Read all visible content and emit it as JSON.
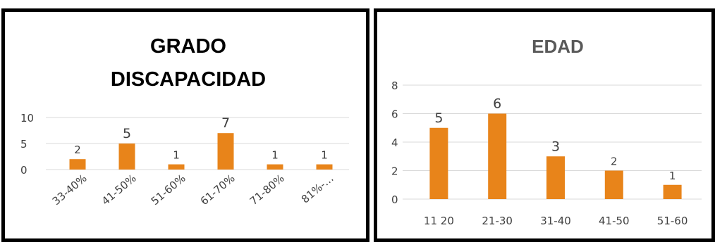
{
  "chart_data": [
    {
      "type": "bar",
      "title": "GRADO DISCAPACIDAD",
      "title_lines": [
        "GRADO",
        "DISCAPACIDAD"
      ],
      "categories": [
        "33-40%",
        "41-50%",
        "51-60%",
        "61-70%",
        "71-80%",
        "81%-…"
      ],
      "values": [
        2,
        5,
        1,
        7,
        1,
        1
      ],
      "data_labels": [
        "2",
        "5",
        "1",
        "7",
        "1",
        "1"
      ],
      "ylim": [
        0,
        10
      ],
      "yticks": [
        "0",
        "5",
        "10"
      ],
      "xlabel": "",
      "ylabel": "",
      "grid": true,
      "color": "#E8841A"
    },
    {
      "type": "bar",
      "title": "EDAD",
      "title_lines": [
        "EDAD"
      ],
      "categories": [
        "11 20",
        "21-30",
        "31-40",
        "41-50",
        "51-60"
      ],
      "values": [
        5,
        6,
        3,
        2,
        1
      ],
      "data_labels": [
        "5",
        "6",
        "3",
        "2",
        "1"
      ],
      "ylim": [
        0,
        8
      ],
      "yticks": [
        "0",
        "2",
        "4",
        "6",
        "8"
      ],
      "xlabel": "",
      "ylabel": "",
      "grid": true,
      "color": "#E8841A"
    }
  ]
}
